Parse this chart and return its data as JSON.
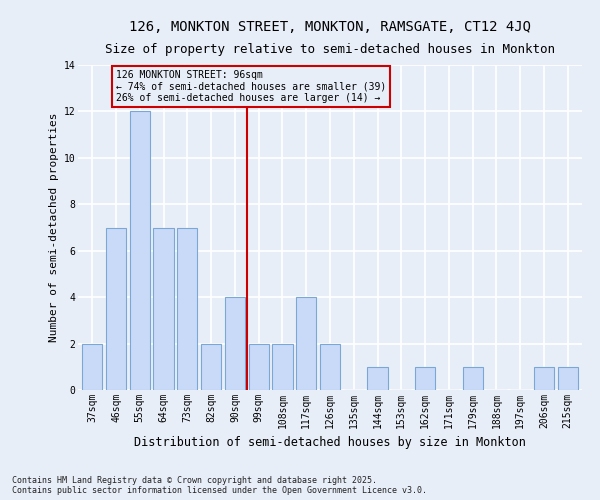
{
  "title": "126, MONKTON STREET, MONKTON, RAMSGATE, CT12 4JQ",
  "subtitle": "Size of property relative to semi-detached houses in Monkton",
  "xlabel": "Distribution of semi-detached houses by size in Monkton",
  "ylabel": "Number of semi-detached properties",
  "categories": [
    "37sqm",
    "46sqm",
    "55sqm",
    "64sqm",
    "73sqm",
    "82sqm",
    "90sqm",
    "99sqm",
    "108sqm",
    "117sqm",
    "126sqm",
    "135sqm",
    "144sqm",
    "153sqm",
    "162sqm",
    "171sqm",
    "179sqm",
    "188sqm",
    "197sqm",
    "206sqm",
    "215sqm"
  ],
  "values": [
    2,
    7,
    12,
    7,
    7,
    2,
    4,
    2,
    2,
    4,
    2,
    0,
    1,
    0,
    1,
    0,
    1,
    0,
    0,
    1,
    1
  ],
  "bar_color": "#c9daf8",
  "bar_edge_color": "#7ba7d4",
  "highlight_line_index": 7,
  "highlight_line_color": "#cc0000",
  "annotation_text": "126 MONKTON STREET: 96sqm\n← 74% of semi-detached houses are smaller (39)\n26% of semi-detached houses are larger (14) →",
  "annotation_box_color": "#cc0000",
  "background_color": "#e8eef8",
  "grid_color": "#ffffff",
  "ylim": [
    0,
    14
  ],
  "yticks": [
    0,
    2,
    4,
    6,
    8,
    10,
    12,
    14
  ],
  "footnote": "Contains HM Land Registry data © Crown copyright and database right 2025.\nContains public sector information licensed under the Open Government Licence v3.0.",
  "title_fontsize": 10,
  "subtitle_fontsize": 9,
  "xlabel_fontsize": 8.5,
  "ylabel_fontsize": 8,
  "tick_fontsize": 7,
  "footnote_fontsize": 6,
  "annotation_fontsize": 7
}
